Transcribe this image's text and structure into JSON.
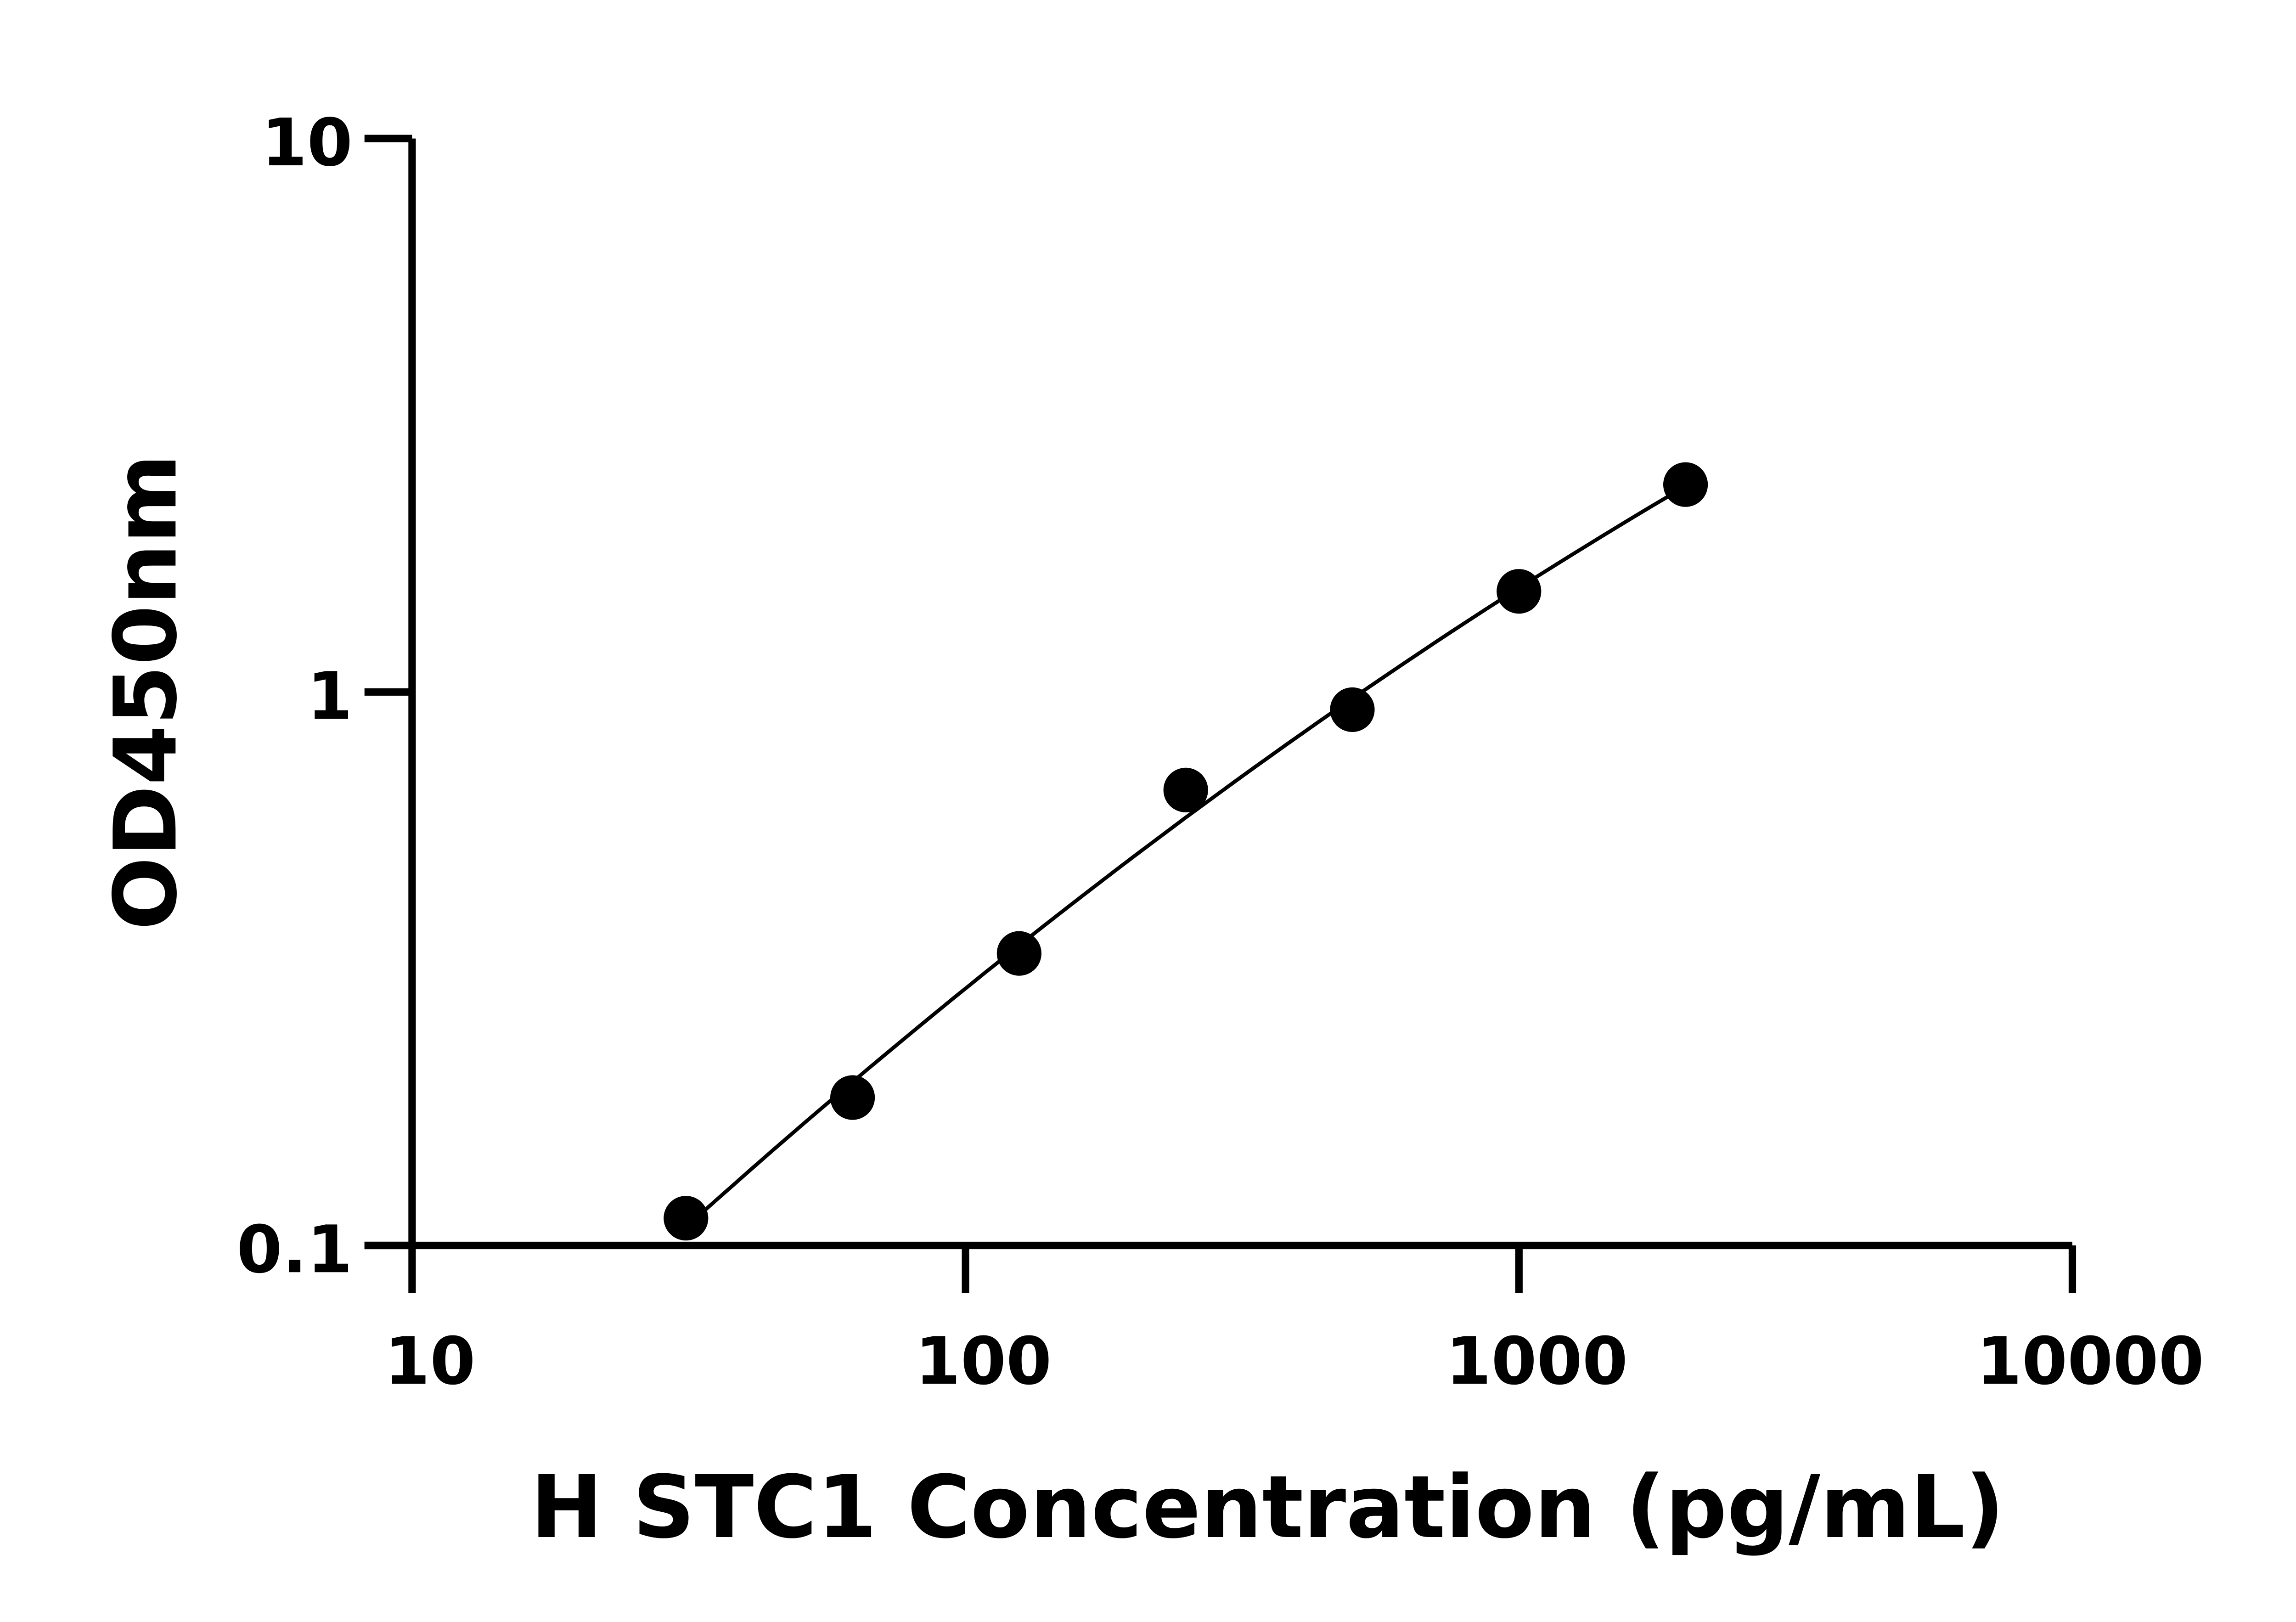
{
  "chart_data": {
    "type": "scatter",
    "title": "",
    "xlabel": "H STC1 Concentration (pg/mL)",
    "ylabel": "OD450nm",
    "x_scale": "log",
    "y_scale": "log",
    "xlim": [
      10,
      10000
    ],
    "ylim": [
      0.1,
      10
    ],
    "x_ticks": [
      "10",
      "100",
      "1000",
      "10000"
    ],
    "y_ticks": [
      "0.1",
      "1",
      "10"
    ],
    "grid": false,
    "fit_curve": true,
    "series": [
      {
        "x": [
          31.25,
          62.5,
          125,
          250,
          500,
          1000,
          2000
        ],
        "y": [
          0.112,
          0.185,
          0.337,
          0.665,
          0.929,
          1.52,
          2.37
        ]
      }
    ],
    "colors": {
      "points": "#000000",
      "line": "#000000"
    }
  }
}
